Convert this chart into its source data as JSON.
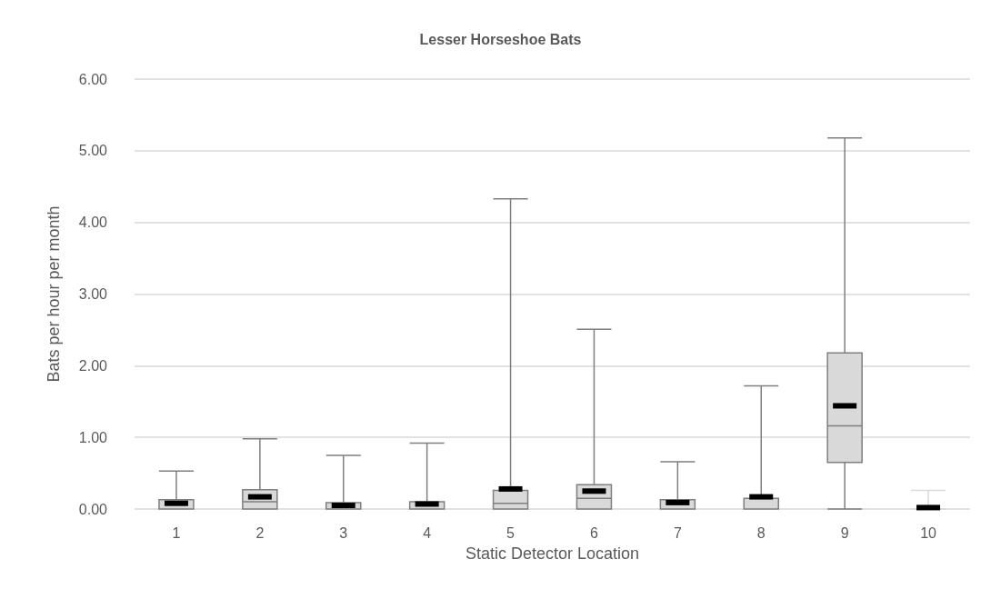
{
  "chart_data": {
    "type": "box",
    "title": "Lesser Horseshoe Bats",
    "xlabel": "Static Detector Location",
    "ylabel": "Bats per hour per month",
    "categories": [
      "1",
      "2",
      "3",
      "4",
      "5",
      "6",
      "7",
      "8",
      "9",
      "10"
    ],
    "boxes": [
      {
        "low": 0,
        "q1": 0,
        "median": 0,
        "q3": 0.13,
        "high": 0.53,
        "mean": 0.08
      },
      {
        "low": 0,
        "q1": 0,
        "median": 0.1,
        "q3": 0.27,
        "high": 0.98,
        "mean": 0.17
      },
      {
        "low": 0,
        "q1": 0,
        "median": 0,
        "q3": 0.09,
        "high": 0.75,
        "mean": 0.05
      },
      {
        "low": 0,
        "q1": 0,
        "median": 0,
        "q3": 0.1,
        "high": 0.92,
        "mean": 0.07
      },
      {
        "low": 0,
        "q1": 0,
        "median": 0.08,
        "q3": 0.26,
        "high": 4.33,
        "mean": 0.28
      },
      {
        "low": 0,
        "q1": 0,
        "median": 0.15,
        "q3": 0.34,
        "high": 2.51,
        "mean": 0.25
      },
      {
        "low": 0,
        "q1": 0,
        "median": 0,
        "q3": 0.13,
        "high": 0.66,
        "mean": 0.09
      },
      {
        "low": 0,
        "q1": 0,
        "median": 0,
        "q3": 0.15,
        "high": 1.72,
        "mean": 0.17
      },
      {
        "low": 0,
        "q1": 0.65,
        "median": 1.16,
        "q3": 2.18,
        "high": 5.18,
        "mean": 1.44
      },
      {
        "low": 0,
        "q1": 0,
        "median": 0,
        "q3": 0,
        "high": 0.26,
        "mean": 0.02
      }
    ],
    "color": "#d9d9d9",
    "ylim": [
      0,
      6
    ],
    "yticks": [
      {
        "value": 0,
        "label": "0.00"
      },
      {
        "value": 1,
        "label": "1.00"
      },
      {
        "value": 2,
        "label": "2.00"
      },
      {
        "value": 3,
        "label": "3.00"
      },
      {
        "value": 4,
        "label": "4.00"
      },
      {
        "value": 5,
        "label": "5.00"
      },
      {
        "value": 6,
        "label": "6.00"
      }
    ],
    "grid": "y"
  }
}
